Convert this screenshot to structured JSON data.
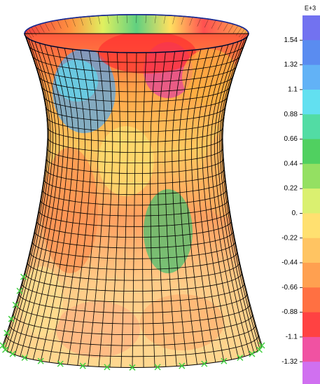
{
  "legend": {
    "exponent": "E+3",
    "labels": [
      "1.54",
      "1.32",
      "1.1",
      "0.88",
      "0.66",
      "0.44",
      "0.22",
      "0.",
      "-0.22",
      "-0.44",
      "-0.66",
      "-0.88",
      "-1.1",
      "-1.32"
    ]
  }
}
